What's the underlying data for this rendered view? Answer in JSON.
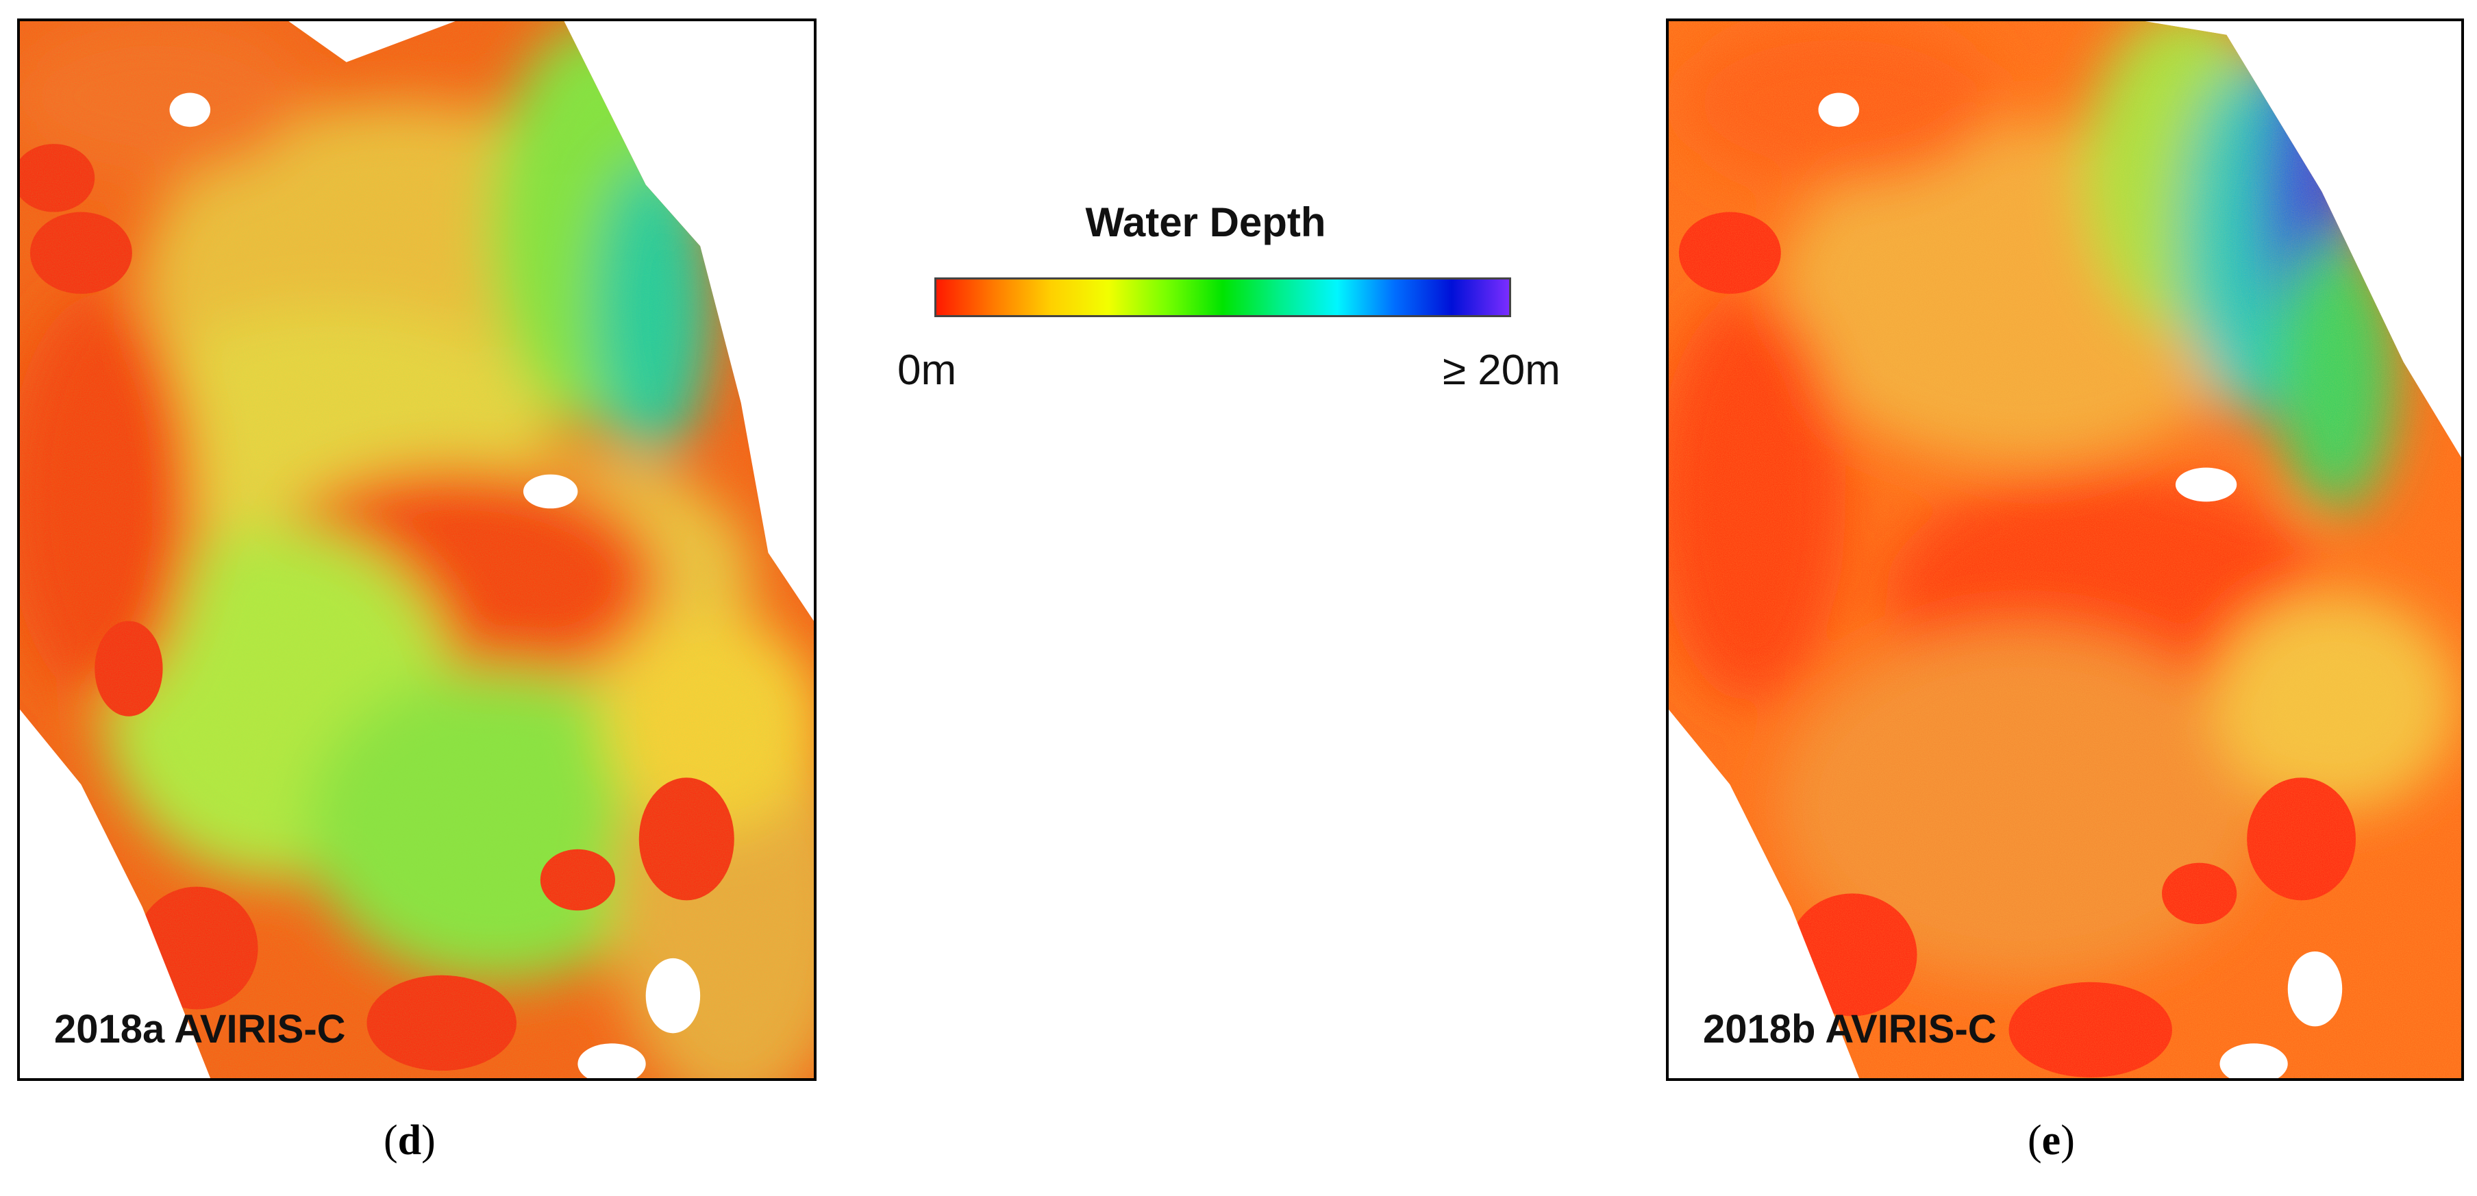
{
  "legend": {
    "title": "Water Depth",
    "min_label": "0m",
    "max_label": "≥ 20m",
    "colors": [
      "#ff1a00",
      "#ff7a00",
      "#ffd000",
      "#f2ff00",
      "#7aff00",
      "#00e400",
      "#00ef8a",
      "#00f6ff",
      "#006eff",
      "#0010d8",
      "#7a2dff"
    ]
  },
  "panels": [
    {
      "label": "2018a AVIRIS-C",
      "caption_letter": "d"
    },
    {
      "label": "2018b AVIRIS-C",
      "caption_letter": "e"
    }
  ]
}
